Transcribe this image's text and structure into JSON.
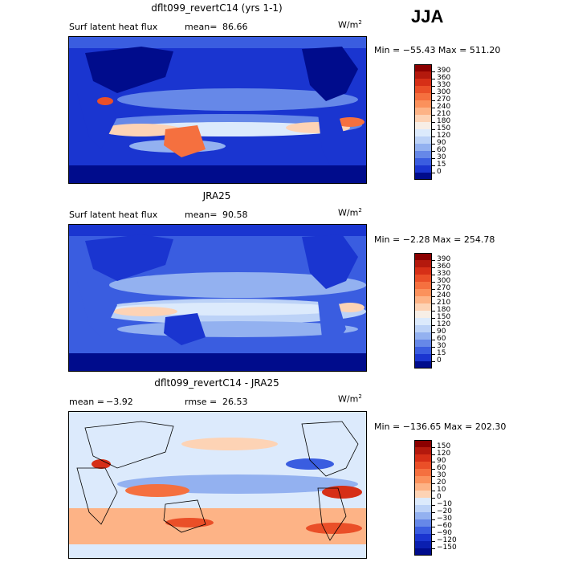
{
  "season": "JJA",
  "panels": [
    {
      "title": "dflt099_revertC14 (yrs 1-1)",
      "label_left": "Surf latent heat flux",
      "stat1_label": "mean=",
      "stat1_value": "86.66",
      "stat2_label": "",
      "stat2_value": "",
      "units": "W/m",
      "units_exp": "2",
      "minmax": "Min = −55.43  Max = 511.20",
      "kind": "abs"
    },
    {
      "title": "JRA25",
      "label_left": "Surf latent heat flux",
      "stat1_label": "mean=",
      "stat1_value": "90.58",
      "stat2_label": "",
      "stat2_value": "",
      "units": "W/m",
      "units_exp": "2",
      "minmax": "Min =  −2.28  Max = 254.78",
      "kind": "abs"
    },
    {
      "title": "dflt099_revertC14 - JRA25",
      "label_left": "",
      "stat1_label": "mean =",
      "stat1_value": "−3.92",
      "stat2_label": "rmse =",
      "stat2_value": "26.53",
      "units": "W/m",
      "units_exp": "2",
      "minmax": "Min = −136.65  Max = 202.30",
      "kind": "diff"
    }
  ],
  "colorbars": {
    "abs": {
      "labels": [
        "390",
        "360",
        "330",
        "300",
        "270",
        "240",
        "210",
        "180",
        "150",
        "120",
        "90",
        "60",
        "30",
        "15",
        "0"
      ],
      "colors": [
        "#8b0000",
        "#b4190d",
        "#d62f17",
        "#ea4f28",
        "#f5703f",
        "#fb915c",
        "#fdb386",
        "#fdd3b5",
        "#f7eee6",
        "#dceafc",
        "#bcd2f7",
        "#93b1f0",
        "#6688e8",
        "#3a5de0",
        "#1a35d0",
        "#000c8c"
      ]
    },
    "diff": {
      "labels": [
        "150",
        "120",
        "90",
        "60",
        "30",
        "20",
        "10",
        "0",
        "−10",
        "−20",
        "−30",
        "−60",
        "−90",
        "−120",
        "−150"
      ],
      "colors": [
        "#8b0000",
        "#b4190d",
        "#d62f17",
        "#ea4f28",
        "#f5703f",
        "#fb915c",
        "#fdb386",
        "#fdd3b5",
        "#dceafc",
        "#bcd2f7",
        "#93b1f0",
        "#6688e8",
        "#3a5de0",
        "#1a35d0",
        "#0a1fb0",
        "#000c8c"
      ]
    }
  },
  "chart_data": [
    {
      "type": "heatmap",
      "title": "dflt099_revertC14 (yrs 1-1)",
      "subtitle": "Surf latent heat flux",
      "units": "W/m2",
      "mean": 86.66,
      "min": -55.43,
      "max": 511.2,
      "contour_levels": [
        0,
        15,
        30,
        60,
        90,
        120,
        150,
        180,
        210,
        240,
        270,
        300,
        330,
        360,
        390
      ],
      "season": "JJA"
    },
    {
      "type": "heatmap",
      "title": "JRA25",
      "subtitle": "Surf latent heat flux",
      "units": "W/m2",
      "mean": 90.58,
      "min": -2.28,
      "max": 254.78,
      "contour_levels": [
        0,
        15,
        30,
        60,
        90,
        120,
        150,
        180,
        210,
        240,
        270,
        300,
        330,
        360,
        390
      ],
      "season": "JJA"
    },
    {
      "type": "heatmap",
      "title": "dflt099_revertC14 - JRA25",
      "units": "W/m2",
      "mean": -3.92,
      "rmse": 26.53,
      "min": -136.65,
      "max": 202.3,
      "contour_levels": [
        -150,
        -120,
        -90,
        -60,
        -30,
        -20,
        -10,
        0,
        10,
        20,
        30,
        60,
        90,
        120,
        150
      ],
      "season": "JJA"
    }
  ]
}
